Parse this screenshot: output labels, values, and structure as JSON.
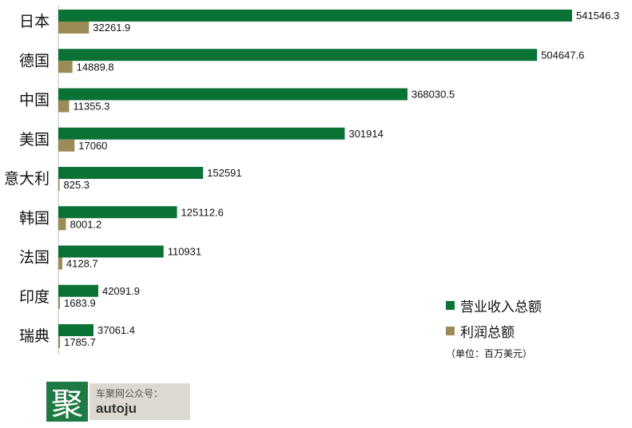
{
  "chart_data": {
    "type": "bar",
    "orientation": "horizontal",
    "categories": [
      "日本",
      "德国",
      "中国",
      "美国",
      "意大利",
      "韩国",
      "法国",
      "印度",
      "瑞典"
    ],
    "series": [
      {
        "name": "营业收入总额",
        "color": "#0b7236",
        "values": [
          541546.3,
          504647.6,
          368030.5,
          301914,
          152591,
          125112.6,
          110931,
          42091.9,
          37061.4
        ]
      },
      {
        "name": "利润总额",
        "color": "#9b8b56",
        "values": [
          32261.9,
          14889.8,
          11355.3,
          17060,
          825.3,
          8001.2,
          4128.7,
          1683.9,
          1785.7
        ]
      }
    ],
    "value_labels": [
      [
        "541546.3",
        "504647.6",
        "368030.5",
        "301914",
        "152591",
        "125112.6",
        "110931",
        "42091.9",
        "37061.4"
      ],
      [
        "32261.9",
        "14889.8",
        "11355.3",
        "17060",
        "825.3",
        "8001.2",
        "4128.7",
        "1683.9",
        "1785.7"
      ]
    ],
    "xlim": [
      0,
      541546.3
    ],
    "grid": false,
    "legend_position": "bottom-right",
    "unit_note": "（单位：百万美元）"
  },
  "logo": {
    "mark": "聚",
    "line1": "车聚网公众号：",
    "line2": "autoju",
    "mark_color": "#1e7a45"
  }
}
